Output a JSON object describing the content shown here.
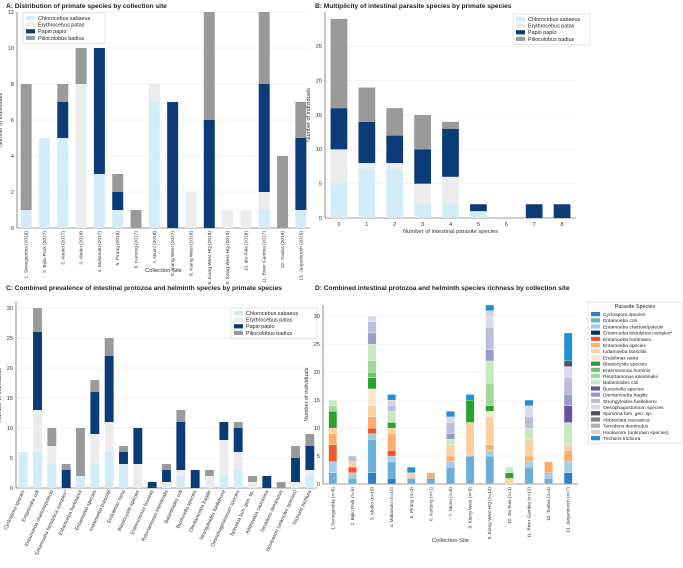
{
  "colors": {
    "chlorocebus": "#d2ecf8",
    "erythrocebus": "#ececec",
    "papio": "#0b3c78",
    "piliocolobus": "#9a9a9a",
    "grid": "#e8e8e8",
    "axis": "#444444"
  },
  "chart_data": [
    {
      "id": "A",
      "type": "bar",
      "stacked": true,
      "title": "A: Distribution of primate species by collection site",
      "xlabel": "Collection Site",
      "ylabel": "Number of Individuals",
      "ylim": [
        0,
        12
      ],
      "yticks": [
        0,
        2,
        4,
        6,
        8,
        10,
        12
      ],
      "legend_position": "top-left",
      "categories": [
        "1. Senegambia (2018)",
        "2. Bijilo Park (2017)",
        "3. Abuko (2017)",
        "3. Abuko (2018)",
        "4. Makasutu (2017)",
        "5. Pirang (2018)",
        "6. Kartong (2017)",
        "7. Niumi (2018)",
        "8. Kiang West (2017)",
        "8. Kiang West (2018)",
        "9. Kiang West HQ (2018)",
        "9. Kiang West HQ (2019)",
        "10. dio Fula (2018)",
        "11. River Gambia (2017)",
        "12. Toubia (2019)",
        "13. Janjanbureh (2019)"
      ],
      "series": [
        {
          "name": "Chlorocebus sabaeus",
          "color_key": "chlorocebus",
          "values": [
            1,
            5,
            5,
            0,
            3,
            1,
            0,
            7,
            0,
            0,
            0,
            0,
            0,
            1,
            0,
            1
          ]
        },
        {
          "name": "Erythrocebus patas",
          "color_key": "erythrocebus",
          "values": [
            0,
            0,
            0,
            8,
            0,
            0,
            0,
            1,
            0,
            2,
            0,
            1,
            1,
            1,
            0,
            0
          ]
        },
        {
          "name": "Papio papio",
          "color_key": "papio",
          "values": [
            0,
            0,
            2,
            0,
            7,
            1,
            0,
            0,
            7,
            0,
            6,
            0,
            0,
            6,
            0,
            4
          ]
        },
        {
          "name": "Piliocolobus badius",
          "color_key": "piliocolobus",
          "values": [
            7,
            0,
            1,
            2,
            0,
            1,
            1,
            0,
            0,
            0,
            6,
            0,
            0,
            4,
            4,
            2
          ]
        }
      ]
    },
    {
      "id": "B",
      "type": "bar",
      "stacked": true,
      "title": "B: Multiplicity of intestinal parasite species by primate species",
      "xlabel": "Number of intestinal parasite species",
      "ylabel": "Number of individuals",
      "ylim": [
        0,
        30
      ],
      "yticks": [
        0,
        5,
        10,
        15,
        20,
        25
      ],
      "legend_position": "top-right",
      "categories": [
        "0",
        "1",
        "2",
        "3",
        "4",
        "5",
        "6",
        "7",
        "8"
      ],
      "series": [
        {
          "name": "Chlorocebus sabaeus",
          "color_key": "chlorocebus",
          "values": [
            5,
            7,
            7,
            2,
            2,
            1,
            0,
            0,
            0
          ]
        },
        {
          "name": "Erythrocebus patas",
          "color_key": "erythrocebus",
          "values": [
            5,
            1,
            1,
            3,
            4,
            0,
            0,
            0,
            0
          ]
        },
        {
          "name": "Papio papio",
          "color_key": "papio",
          "values": [
            6,
            6,
            4,
            5,
            7,
            1,
            0,
            2,
            2
          ]
        },
        {
          "name": "Piliocolobus badius",
          "color_key": "piliocolobus",
          "values": [
            13,
            5,
            4,
            5,
            1,
            0,
            0,
            0,
            0
          ]
        }
      ]
    },
    {
      "id": "C",
      "type": "bar",
      "stacked": true,
      "title": "C: Combined prevalence of intestinal protozoa and helminth species by primate species",
      "xlabel": "",
      "ylabel": "Number of individuals",
      "ylim": [
        0,
        31
      ],
      "yticks": [
        0,
        5,
        10,
        15,
        20,
        25,
        30
      ],
      "legend_position": "top-right",
      "categories": [
        "Cyclospora species",
        "Entamoeba coli",
        "Entamoeba chattoni/polecki",
        "Entamoeba histolytica complex*",
        "Entamoeba hartmanni",
        "Entamoeba species",
        "Iodamoeba butschlii",
        "Endolimax nana",
        "Blastocystis species",
        "Enteromonas hominis",
        "Retortamonas intestinalis",
        "Balantioides coli",
        "Buxtonella species",
        "Dientamoeba fragilis",
        "Strongyloides fuelleborni",
        "Oesophagostomum species",
        "Spirurina fam. gen. sp.",
        "Abbreviata caucasica",
        "Ternidens deminutus",
        "Hookworm (unknown species)",
        "Trichuris trichiura"
      ],
      "series": [
        {
          "name": "Chlorocebus sabaeus",
          "color_key": "chlorocebus",
          "values": [
            6,
            6,
            4,
            0,
            2,
            4,
            6,
            4,
            0,
            0,
            0,
            2,
            0,
            0,
            2,
            3,
            0,
            0,
            0,
            0,
            2
          ]
        },
        {
          "name": "Erythrocebus patas",
          "color_key": "erythrocebus",
          "values": [
            0,
            7,
            3,
            0,
            0,
            5,
            5,
            0,
            4,
            0,
            1,
            1,
            0,
            2,
            6,
            3,
            1,
            0,
            0,
            1,
            1
          ]
        },
        {
          "name": "Papio papio",
          "color_key": "papio",
          "values": [
            0,
            13,
            0,
            3,
            0,
            7,
            11,
            2,
            6,
            1,
            2,
            8,
            3,
            0,
            3,
            4,
            0,
            2,
            0,
            4,
            4
          ]
        },
        {
          "name": "Piliocolobus badius",
          "color_key": "piliocolobus",
          "values": [
            0,
            4,
            3,
            1,
            8,
            2,
            3,
            1,
            0,
            0,
            1,
            2,
            0,
            1,
            0,
            1,
            1,
            0,
            1,
            2,
            2
          ]
        }
      ]
    },
    {
      "id": "D",
      "type": "bar",
      "stacked": true,
      "title": "D: Combined intestinal protozoa and helminth species richness by collection site",
      "xlabel": "Collection Site",
      "ylabel": "Number of individuals",
      "ylim": [
        0,
        32
      ],
      "yticks": [
        0,
        5,
        10,
        15,
        20,
        25,
        30
      ],
      "legend_title": "Parasite Species",
      "legend_position": "right",
      "categories": [
        "1.Senegambia (n=8)",
        "2. Bijilo Park (n=5)",
        "3. Abuko (n=18)",
        "4. Makasutu (n=10)",
        "5. Pirang (n=3)",
        "6. Kartong (n=1)",
        "7. Niumi (n=8)",
        "8. Kiang West (n=9)",
        "9. Kiang West HQ (n=12)",
        "10. dio Fula (n=1)",
        "11. River Gambia (n=12)",
        "12. Toubia (n=4)",
        "13. Janjanbureh (n=7)"
      ],
      "series": [
        {
          "name": "Cyclospora species",
          "values": [
            0,
            0,
            2,
            1,
            0,
            0,
            0,
            0,
            0,
            0,
            0,
            0,
            2
          ]
        },
        {
          "name": "Entamoeba coli",
          "values": [
            2,
            1,
            6,
            3,
            1,
            1,
            3,
            5,
            5,
            0,
            3,
            1,
            0
          ]
        },
        {
          "name": "Entamoeba chattoni/polecki",
          "values": [
            2,
            1,
            1,
            1,
            0,
            0,
            1,
            0,
            1,
            0,
            1,
            1,
            2
          ]
        },
        {
          "name": "Entamoeba histolytica complex*",
          "values": [
            0,
            0,
            0,
            0,
            0,
            0,
            0,
            0,
            0,
            0,
            0,
            0,
            0
          ]
        },
        {
          "name": "Entamoeba hartmanni",
          "values": [
            3,
            1,
            1,
            1,
            0,
            0,
            0,
            0,
            0,
            0,
            0,
            0,
            0
          ]
        },
        {
          "name": "Entamoeba species",
          "values": [
            2,
            0,
            2,
            3,
            0,
            1,
            1,
            0,
            1,
            0,
            1,
            2,
            2
          ]
        },
        {
          "name": "Iodamoeba butschlii",
          "values": [
            1,
            1,
            2,
            1,
            1,
            0,
            2,
            6,
            5,
            1,
            3,
            0,
            1
          ]
        },
        {
          "name": "Endolimax nana",
          "values": [
            0,
            0,
            3,
            0,
            0,
            0,
            0,
            0,
            1,
            0,
            0,
            0,
            0
          ]
        },
        {
          "name": "Blastocystis species",
          "values": [
            3,
            0,
            2,
            1,
            0,
            0,
            0,
            4,
            1,
            1,
            0,
            0,
            0
          ]
        },
        {
          "name": "Enteromonas hominis",
          "values": [
            0,
            0,
            1,
            0,
            0,
            0,
            0,
            0,
            0,
            0,
            0,
            0,
            0
          ]
        },
        {
          "name": "Retortamonas intestinalis",
          "values": [
            1,
            0,
            2,
            0,
            0,
            0,
            0,
            0,
            4,
            0,
            0,
            0,
            0
          ]
        },
        {
          "name": "Balantioides coli",
          "values": [
            1,
            0,
            3,
            2,
            0,
            0,
            1,
            0,
            4,
            1,
            2,
            0,
            4
          ]
        },
        {
          "name": "Buxtonella species",
          "values": [
            0,
            0,
            0,
            0,
            0,
            0,
            0,
            0,
            0,
            0,
            0,
            0,
            3
          ]
        },
        {
          "name": "Dientamoeba fragilis",
          "values": [
            0,
            0,
            2,
            0,
            0,
            0,
            1,
            0,
            2,
            0,
            0,
            0,
            2
          ]
        },
        {
          "name": "Strongyloides fuelleborni",
          "values": [
            0,
            1,
            2,
            1,
            0,
            0,
            2,
            0,
            4,
            0,
            2,
            0,
            3
          ]
        },
        {
          "name": "Oesophagostomum species",
          "values": [
            0,
            0,
            1,
            0,
            0,
            0,
            1,
            0,
            2,
            0,
            2,
            0,
            2
          ]
        },
        {
          "name": "Spirurina fam. gen. sp.",
          "values": [
            0,
            0,
            0,
            0,
            0,
            0,
            0,
            0,
            0,
            0,
            0,
            0,
            1
          ]
        },
        {
          "name": "Abbreviata caucasica",
          "values": [
            0,
            0,
            0,
            0,
            0,
            0,
            0,
            0,
            0,
            0,
            0,
            0,
            0
          ]
        },
        {
          "name": "Ternidens deminutus",
          "values": [
            0,
            0,
            0,
            0,
            0,
            0,
            0,
            0,
            0,
            0,
            0,
            0,
            0
          ]
        },
        {
          "name": "Hookworm (unknown species)",
          "values": [
            0,
            0,
            0,
            1,
            0,
            0,
            0,
            0,
            1,
            0,
            0,
            0,
            0
          ]
        },
        {
          "name": "Trichuris trichiura",
          "values": [
            0,
            0,
            0,
            1,
            1,
            0,
            1,
            1,
            1,
            0,
            1,
            0,
            5
          ]
        }
      ],
      "series_colors": [
        "#2f7fc1",
        "#6baed6",
        "#a6cde6",
        "#08306b",
        "#f05a28",
        "#fdae6b",
        "#fdd0a2",
        "#fee6ce",
        "#2ca02c",
        "#74c476",
        "#a1d99b",
        "#c7e9c0",
        "#6a51a3",
        "#9e9ac8",
        "#bcbddc",
        "#dadaeb",
        "#525252",
        "#808080",
        "#b0b0b0",
        "#d4d4d4",
        "#1f8fd6"
      ]
    }
  ]
}
